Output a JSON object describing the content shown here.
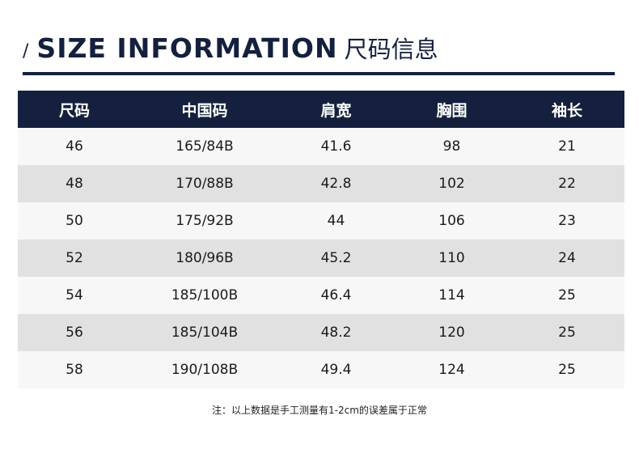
{
  "header": {
    "slash": "/",
    "title_en": "SIZE INFORMATION",
    "title_cn": "尺码信息"
  },
  "table": {
    "headers": [
      "尺码",
      "中国码",
      "肩宽",
      "胸围",
      "袖长"
    ],
    "rows": [
      [
        "46",
        "165/84B",
        "41.6",
        "98",
        "21"
      ],
      [
        "48",
        "170/88B",
        "42.8",
        "102",
        "22"
      ],
      [
        "50",
        "175/92B",
        "44",
        "106",
        "23"
      ],
      [
        "52",
        "180/96B",
        "45.2",
        "110",
        "24"
      ],
      [
        "54",
        "185/100B",
        "46.4",
        "114",
        "25"
      ],
      [
        "56",
        "185/104B",
        "48.2",
        "120",
        "25"
      ],
      [
        "58",
        "190/108B",
        "49.4",
        "124",
        "25"
      ]
    ]
  },
  "note": "注：以上数据是手工测量有1-2cm的误差属于正常",
  "colors": {
    "navy": "#14203d",
    "row_light": "#f7f7f7",
    "row_dark": "#e1e1e1"
  }
}
